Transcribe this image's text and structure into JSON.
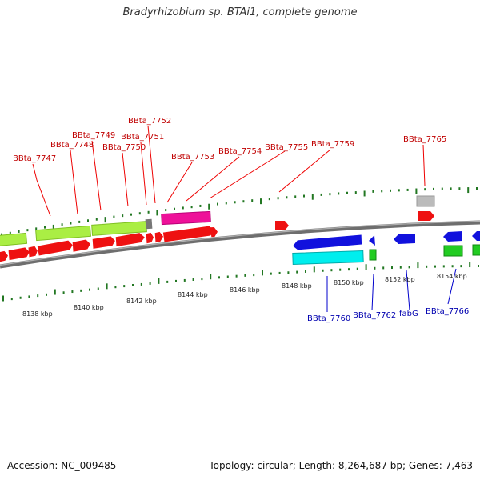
{
  "title": "Bradyrhizobium sp. BTAi1, complete genome",
  "footer": {
    "accession": "Accession: NC_009485",
    "stats": "Topology: circular; Length: 8,264,687 bp; Genes: 7,463"
  },
  "colors": {
    "forward_cds": "#ee1111",
    "reverse_cds": "#1111dd",
    "forward_rna": "#aaee44",
    "reverse_rna": "#22cc22",
    "pink": "#ee1199",
    "cyan": "#00eeee",
    "gray": "#bbbbbb",
    "backbone": "#808080",
    "tick": "#227722",
    "label_forward": "#c00000",
    "label_reverse": "#0000b0"
  },
  "scale_labels": [
    "8138 kbp",
    "8140 kbp",
    "8142 kbp",
    "8144 kbp",
    "8146 kbp",
    "8148 kbp",
    "8150 kbp",
    "8152 kbp",
    "8154 kbp"
  ],
  "forward_labels": [
    "BBta_7747",
    "BBta_7748",
    "BBta_7749",
    "BBta_7750",
    "BBta_7751",
    "BBta_7752",
    "BBta_7753",
    "BBta_7754",
    "BBta_7755",
    "BBta_7759",
    "BBta_7765"
  ],
  "reverse_labels": [
    "BBta_7760",
    "BBta_7762",
    "fabG",
    "BBta_7766"
  ]
}
